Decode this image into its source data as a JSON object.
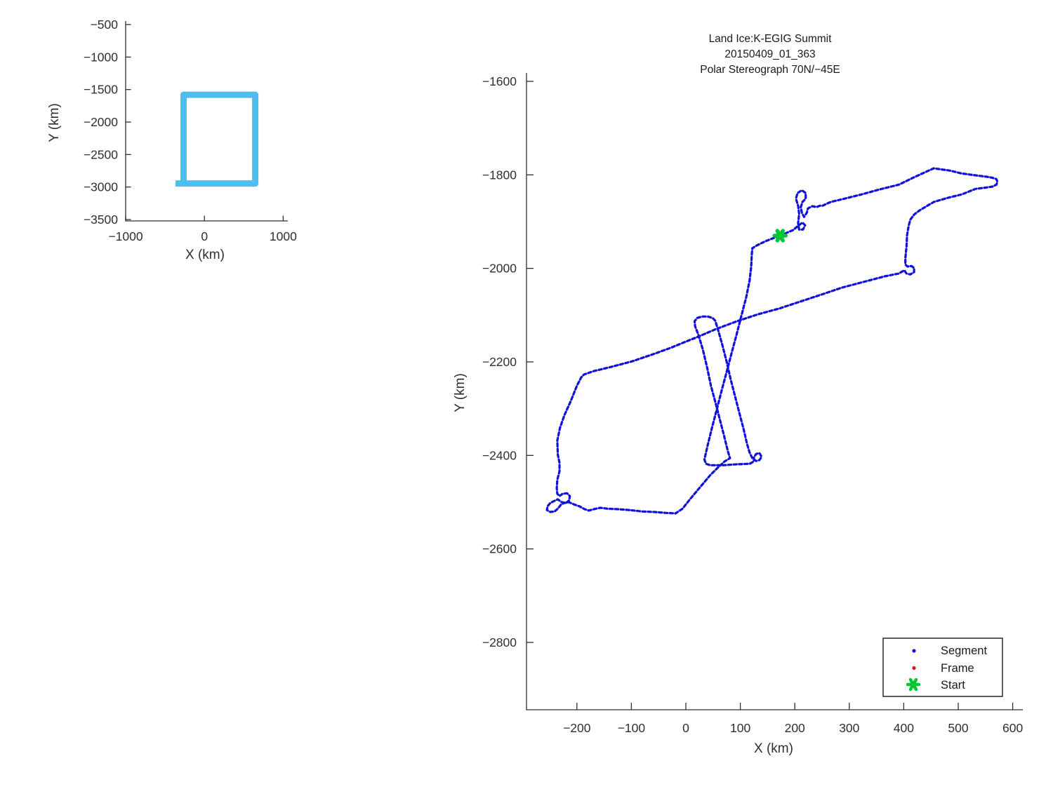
{
  "figure": {
    "background": "#ffffff",
    "text_color": "#2f2f2f"
  },
  "overview_plot": {
    "xlabel": "X (km)",
    "ylabel": "Y (km)",
    "x_tick_labels": [
      "−1000",
      "0",
      "1000"
    ],
    "y_tick_labels": [
      "−500",
      "−1000",
      "−1500",
      "−2000",
      "−2500",
      "−3000",
      "−3500"
    ]
  },
  "main_plot": {
    "title_lines": [
      "Land Ice:K-EGIG Summit",
      "20150409_01_363",
      "Polar Stereograph 70N/−45E"
    ],
    "xlabel": "X (km)",
    "ylabel": "Y (km)",
    "x_tick_labels": [
      "−200",
      "−100",
      "0",
      "100",
      "200",
      "300",
      "400",
      "500",
      "600"
    ],
    "y_tick_labels": [
      "−1600",
      "−1800",
      "−2000",
      "−2200",
      "−2400",
      "−2600",
      "−2800"
    ],
    "legend": {
      "items": [
        {
          "label": "Segment",
          "marker": "dot",
          "color": "#1010DC"
        },
        {
          "label": "Frame",
          "marker": "dot",
          "color": "#DC1414"
        },
        {
          "label": "Start",
          "marker": "asterisk",
          "color": "#00C832"
        }
      ]
    }
  },
  "chart_data": [
    {
      "name": "overview-locator",
      "type": "line",
      "xlabel": "X (km)",
      "ylabel": "Y (km)",
      "xlim": [
        -1000,
        1040
      ],
      "ylim": [
        -3520,
        -500
      ],
      "x_ticks": [
        -1000,
        0,
        1000
      ],
      "y_ticks": [
        -500,
        -1000,
        -1500,
        -2000,
        -2500,
        -3000,
        -3500
      ],
      "grid": false,
      "series": [
        {
          "name": "coverage-extent-box",
          "color": "#4DBEEE",
          "line_width": 9,
          "x_range": [
            -265,
            645
          ],
          "y_range": [
            -2945,
            -1580
          ]
        }
      ]
    },
    {
      "name": "flight-track",
      "type": "scatter",
      "title": "Land Ice:K-EGIG Summit 20150409_01_363 Polar Stereograph 70N/−45E",
      "xlabel": "X (km)",
      "ylabel": "Y (km)",
      "xlim": [
        -292,
        616
      ],
      "ylim": [
        -2944,
        -1585
      ],
      "x_ticks": [
        -200,
        -100,
        0,
        100,
        200,
        300,
        400,
        500,
        600
      ],
      "y_ticks": [
        -1600,
        -1800,
        -2000,
        -2200,
        -2400,
        -2600,
        -2800
      ],
      "grid": false,
      "legend_position": "lower-right",
      "series": [
        {
          "name": "Segment",
          "color": "#1010DC",
          "points": [
            [
              173,
              -1930
            ],
            [
              187,
              -1923
            ],
            [
              197,
              -1918
            ],
            [
              206,
              -1909
            ],
            [
              214,
              -1902
            ],
            [
              219,
              -1908
            ],
            [
              215,
              -1917
            ],
            [
              208,
              -1917
            ],
            [
              206,
              -1903
            ],
            [
              208,
              -1884
            ],
            [
              206,
              -1866
            ],
            [
              202,
              -1851
            ],
            [
              205,
              -1839
            ],
            [
              213,
              -1833
            ],
            [
              220,
              -1839
            ],
            [
              220,
              -1851
            ],
            [
              214,
              -1858
            ],
            [
              211,
              -1869
            ],
            [
              213,
              -1881
            ],
            [
              217,
              -1890
            ],
            [
              222,
              -1881
            ],
            [
              224,
              -1872
            ],
            [
              232,
              -1867
            ],
            [
              240,
              -1869
            ],
            [
              246,
              -1866
            ],
            [
              251,
              -1866
            ],
            [
              258,
              -1862
            ],
            [
              266,
              -1858
            ],
            [
              291,
              -1851
            ],
            [
              322,
              -1842
            ],
            [
              356,
              -1831
            ],
            [
              391,
              -1821
            ],
            [
              423,
              -1803
            ],
            [
              455,
              -1786
            ],
            [
              485,
              -1791
            ],
            [
              506,
              -1797
            ],
            [
              532,
              -1801
            ],
            [
              552,
              -1804
            ],
            [
              562,
              -1806
            ],
            [
              570,
              -1809
            ],
            [
              572,
              -1815
            ],
            [
              570,
              -1821
            ],
            [
              563,
              -1825
            ],
            [
              552,
              -1827
            ],
            [
              532,
              -1830
            ],
            [
              506,
              -1842
            ],
            [
              481,
              -1849
            ],
            [
              455,
              -1858
            ],
            [
              429,
              -1876
            ],
            [
              419,
              -1885
            ],
            [
              412,
              -1896
            ],
            [
              409,
              -1909
            ],
            [
              406,
              -1929
            ],
            [
              405,
              -1954
            ],
            [
              403,
              -1978
            ],
            [
              403,
              -1992
            ],
            [
              407,
              -1996
            ],
            [
              414,
              -1995
            ],
            [
              419,
              -1999
            ],
            [
              419,
              -2008
            ],
            [
              412,
              -2013
            ],
            [
              405,
              -2011
            ],
            [
              401,
              -2004
            ],
            [
              391,
              -2011
            ],
            [
              365,
              -2017
            ],
            [
              326,
              -2029
            ],
            [
              287,
              -2041
            ],
            [
              249,
              -2056
            ],
            [
              210,
              -2071
            ],
            [
              171,
              -2086
            ],
            [
              133,
              -2098
            ],
            [
              94,
              -2113
            ],
            [
              55,
              -2130
            ],
            [
              23,
              -2146
            ],
            [
              -3,
              -2158
            ],
            [
              -28,
              -2170
            ],
            [
              -61,
              -2184
            ],
            [
              -99,
              -2199
            ],
            [
              -138,
              -2211
            ],
            [
              -170,
              -2220
            ],
            [
              -187,
              -2227
            ],
            [
              -192,
              -2233
            ],
            [
              -200,
              -2251
            ],
            [
              -211,
              -2283
            ],
            [
              -223,
              -2314
            ],
            [
              -231,
              -2341
            ],
            [
              -236,
              -2368
            ],
            [
              -235,
              -2398
            ],
            [
              -232,
              -2416
            ],
            [
              -232,
              -2434
            ],
            [
              -236,
              -2452
            ],
            [
              -237,
              -2470
            ],
            [
              -236,
              -2482
            ],
            [
              -232,
              -2487
            ],
            [
              -226,
              -2482
            ],
            [
              -218,
              -2481
            ],
            [
              -213,
              -2487
            ],
            [
              -214,
              -2496
            ],
            [
              -220,
              -2502
            ],
            [
              -228,
              -2500
            ],
            [
              -235,
              -2494
            ],
            [
              -241,
              -2497
            ],
            [
              -249,
              -2502
            ],
            [
              -254,
              -2509
            ],
            [
              -255,
              -2517
            ],
            [
              -249,
              -2521
            ],
            [
              -241,
              -2520
            ],
            [
              -235,
              -2514
            ],
            [
              -229,
              -2505
            ],
            [
              -224,
              -2502
            ],
            [
              -215,
              -2500
            ],
            [
              -205,
              -2505
            ],
            [
              -195,
              -2509
            ],
            [
              -186,
              -2515
            ],
            [
              -178,
              -2518
            ],
            [
              -169,
              -2515
            ],
            [
              -157,
              -2512
            ],
            [
              -144,
              -2514
            ],
            [
              -125,
              -2515
            ],
            [
              -103,
              -2517
            ],
            [
              -80,
              -2520
            ],
            [
              -58,
              -2521
            ],
            [
              -37,
              -2523
            ],
            [
              -19,
              -2524
            ],
            [
              -6,
              -2514
            ],
            [
              6,
              -2496
            ],
            [
              19,
              -2478
            ],
            [
              32,
              -2460
            ],
            [
              45,
              -2442
            ],
            [
              58,
              -2427
            ],
            [
              71,
              -2413
            ],
            [
              81,
              -2406
            ],
            [
              77,
              -2391
            ],
            [
              71,
              -2362
            ],
            [
              63,
              -2326
            ],
            [
              55,
              -2290
            ],
            [
              46,
              -2251
            ],
            [
              39,
              -2212
            ],
            [
              31,
              -2173
            ],
            [
              23,
              -2142
            ],
            [
              17,
              -2124
            ],
            [
              16,
              -2113
            ],
            [
              21,
              -2106
            ],
            [
              30,
              -2103
            ],
            [
              40,
              -2103
            ],
            [
              49,
              -2106
            ],
            [
              54,
              -2112
            ],
            [
              59,
              -2131
            ],
            [
              67,
              -2164
            ],
            [
              75,
              -2200
            ],
            [
              82,
              -2236
            ],
            [
              90,
              -2272
            ],
            [
              98,
              -2308
            ],
            [
              106,
              -2344
            ],
            [
              112,
              -2374
            ],
            [
              117,
              -2394
            ],
            [
              122,
              -2406
            ],
            [
              129,
              -2412
            ],
            [
              135,
              -2410
            ],
            [
              139,
              -2403
            ],
            [
              135,
              -2395
            ],
            [
              129,
              -2397
            ],
            [
              125,
              -2404
            ],
            [
              125,
              -2413
            ],
            [
              117,
              -2418
            ],
            [
              94,
              -2419
            ],
            [
              68,
              -2421
            ],
            [
              45,
              -2421
            ],
            [
              37,
              -2418
            ],
            [
              34,
              -2409
            ],
            [
              40,
              -2379
            ],
            [
              48,
              -2341
            ],
            [
              57,
              -2301
            ],
            [
              66,
              -2260
            ],
            [
              75,
              -2221
            ],
            [
              84,
              -2181
            ],
            [
              93,
              -2142
            ],
            [
              102,
              -2101
            ],
            [
              111,
              -2061
            ],
            [
              117,
              -2026
            ],
            [
              120,
              -1996
            ],
            [
              121,
              -1971
            ],
            [
              122,
              -1957
            ],
            [
              130,
              -1951
            ],
            [
              146,
              -1942
            ],
            [
              159,
              -1936
            ],
            [
              173,
              -1930
            ]
          ]
        },
        {
          "name": "Frame",
          "color": "#DC1414",
          "points": []
        },
        {
          "name": "Start",
          "color": "#00C832",
          "points": [
            [
              173,
              -1930
            ]
          ]
        }
      ]
    }
  ]
}
